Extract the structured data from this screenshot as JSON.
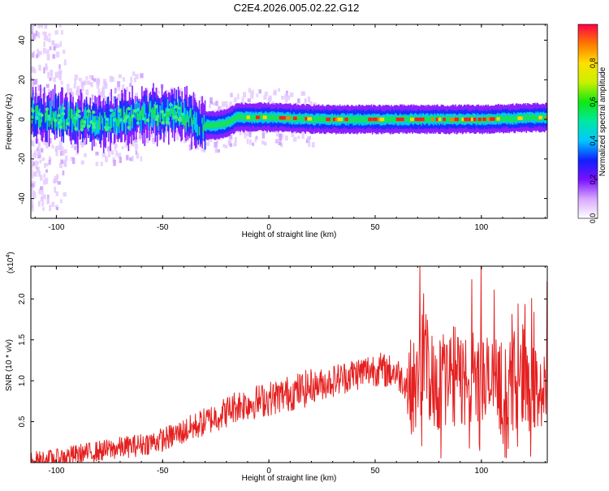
{
  "title": "C2E4.2026.005.02.22.G12",
  "chart_data": [
    {
      "type": "heatmap",
      "name": "spectrogram",
      "xlabel": "Height of straight line (km)",
      "ylabel": "Frequency (Hz)",
      "xlim": [
        -112,
        131
      ],
      "ylim": [
        -50,
        48
      ],
      "xticks": [
        "-100",
        "-50",
        "0",
        "50",
        "100"
      ],
      "xtick_values": [
        -100,
        -50,
        0,
        50,
        100
      ],
      "yticks": [
        "40",
        "20",
        "0",
        "-20",
        "-40"
      ],
      "ytick_values": [
        40,
        20,
        0,
        -20,
        -40
      ],
      "ridge": [
        {
          "x": -112,
          "f": 2
        },
        {
          "x": -100,
          "f": 1
        },
        {
          "x": -90,
          "f": 0
        },
        {
          "x": -80,
          "f": -1
        },
        {
          "x": -70,
          "f": 0
        },
        {
          "x": -60,
          "f": 2
        },
        {
          "x": -50,
          "f": 3
        },
        {
          "x": -42,
          "f": 3
        },
        {
          "x": -37,
          "f": 0
        },
        {
          "x": -34,
          "f": -2
        },
        {
          "x": -30,
          "f": -3
        },
        {
          "x": -25,
          "f": -3
        },
        {
          "x": -20,
          "f": -2
        },
        {
          "x": -15,
          "f": 1
        },
        {
          "x": 0,
          "f": 1
        },
        {
          "x": 25,
          "f": 0
        },
        {
          "x": 50,
          "f": 0
        },
        {
          "x": 75,
          "f": 0
        },
        {
          "x": 100,
          "f": 0
        },
        {
          "x": 131,
          "f": 1
        }
      ],
      "colorbar": {
        "label": "Normalized spectral amplitude",
        "range": [
          0,
          1
        ],
        "ticks": [
          "0.0",
          "0.2",
          "0.4",
          "0.6",
          "0.8"
        ],
        "tick_values": [
          0.0,
          0.2,
          0.4,
          0.6,
          0.8
        ],
        "colors": [
          "#ffffff",
          "#d8a8ff",
          "#7a10ff",
          "#1020ff",
          "#00c8ff",
          "#00e8a0",
          "#10e810",
          "#c8f000",
          "#ffe000",
          "#ff7800",
          "#ff0048"
        ]
      }
    },
    {
      "type": "line",
      "name": "snr",
      "xlabel": "Height of straight line (km)",
      "ylabel": "SNR (10 * v/v)",
      "multiplier": "(x10",
      "multiplier_exp": "4",
      "multiplier_close": ")",
      "xlim": [
        -112,
        131
      ],
      "ylim": [
        0,
        2.4
      ],
      "xticks": [
        "-100",
        "-50",
        "0",
        "50",
        "100"
      ],
      "xtick_values": [
        -100,
        -50,
        0,
        50,
        100
      ],
      "yticks": [
        "0.5",
        "1.0",
        "1.5",
        "2.0"
      ],
      "ytick_values": [
        0.5,
        1.0,
        1.5,
        2.0
      ],
      "line_color": "#e52020",
      "series": [
        {
          "name": "SNR",
          "x": [
            -112,
            -100,
            -90,
            -80,
            -70,
            -60,
            -50,
            -40,
            -30,
            -20,
            -15,
            -10,
            0,
            10,
            20,
            30,
            40,
            50,
            55,
            60,
            65,
            70,
            73,
            75,
            80,
            85,
            90,
            95,
            100,
            105,
            110,
            115,
            120,
            125,
            131
          ],
          "y": [
            0.02,
            0.05,
            0.1,
            0.14,
            0.18,
            0.22,
            0.28,
            0.38,
            0.5,
            0.62,
            0.7,
            0.72,
            0.78,
            0.85,
            0.92,
            1.0,
            1.08,
            1.15,
            1.12,
            1.1,
            0.95,
            0.9,
            1.4,
            1.1,
            0.95,
            1.1,
            1.0,
            1.05,
            1.0,
            0.95,
            0.9,
            1.0,
            1.1,
            0.85,
            0.95
          ]
        }
      ]
    }
  ]
}
